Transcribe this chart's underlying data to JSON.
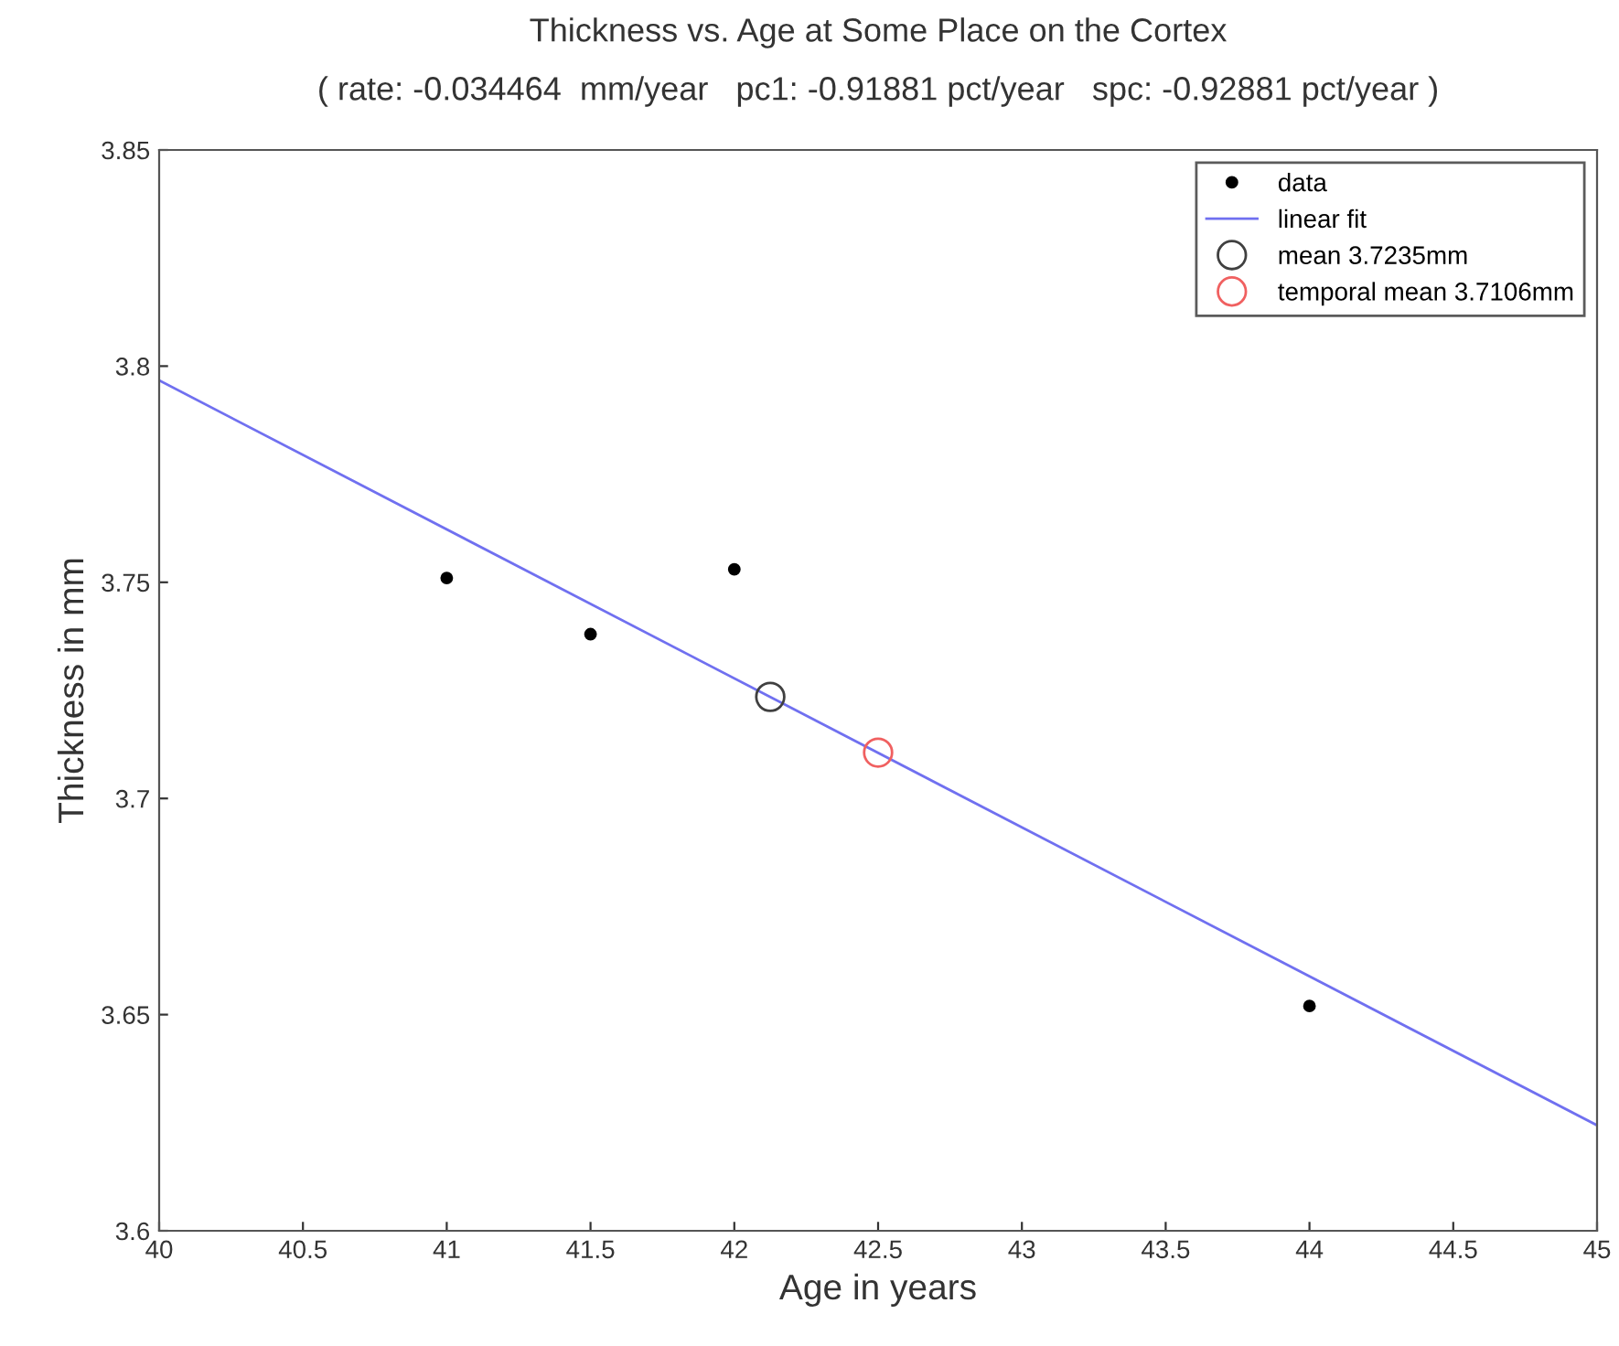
{
  "chart_data": {
    "type": "scatter",
    "title": "Thickness vs. Age at Some Place on the Cortex",
    "subtitle": "( rate: -0.034464  mm/year   pc1: -0.91881 pct/year   spc: -0.92881 pct/year )",
    "xlabel": "Age in years",
    "ylabel": "Thickness in mm",
    "xlim": [
      40,
      45
    ],
    "xticks": [
      40,
      40.5,
      41,
      41.5,
      42,
      42.5,
      43,
      43.5,
      44,
      44.5,
      45
    ],
    "ylim": [
      3.6,
      3.85
    ],
    "yticks": [
      3.6,
      3.65,
      3.7,
      3.75,
      3.8,
      3.85
    ],
    "grid": false,
    "legend": "top right",
    "series": [
      {
        "name": "data",
        "marker": "circle",
        "color": "#000000",
        "x": [
          41,
          41.5,
          42,
          44
        ],
        "values": [
          3.751,
          3.738,
          3.753,
          3.652
        ]
      },
      {
        "name": "linear fit",
        "type": "line",
        "marker": "none",
        "line_style": "solid",
        "color": "#7070f0",
        "x": [
          40,
          45
        ],
        "values": [
          3.7967,
          3.6244
        ]
      },
      {
        "name": "mean 3.7235mm",
        "type": "scatter",
        "marker": "circle",
        "color": "#404040",
        "x": [
          42.125
        ],
        "values": [
          3.7235
        ]
      },
      {
        "name": "temporal mean 3.7106mm",
        "type": "scatter",
        "marker": "circle",
        "color": "#f06060",
        "x": [
          42.5
        ],
        "values": [
          3.7106
        ]
      }
    ]
  }
}
